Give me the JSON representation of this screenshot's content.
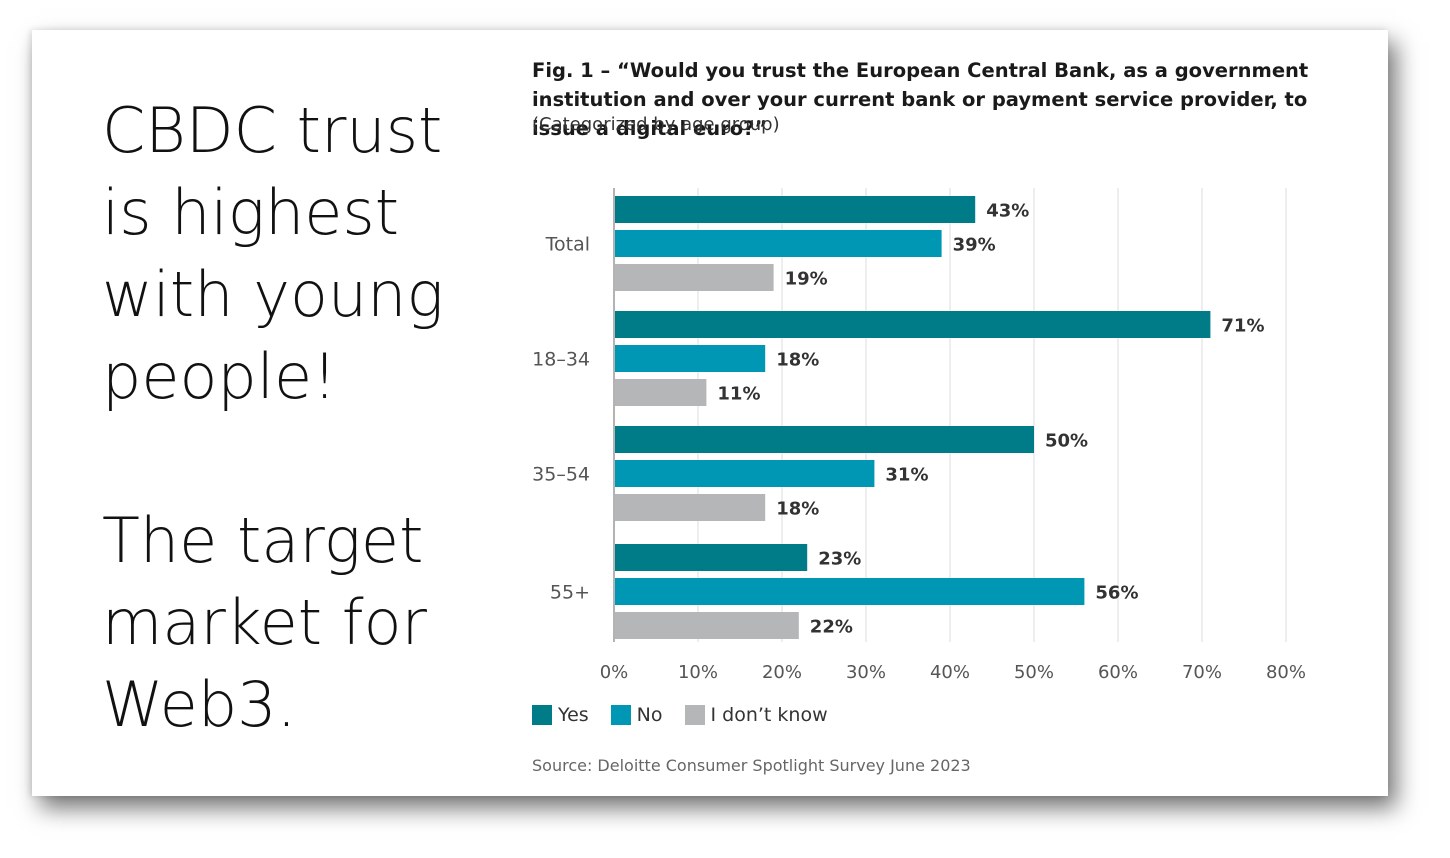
{
  "headline": {
    "lines": [
      "CBDC trust",
      "is highest",
      "with young",
      "people!",
      "",
      "The target",
      "market for",
      "Web3."
    ]
  },
  "figure": {
    "title": "Fig. 1 – “Would you trust the European Central Bank, as a government institution and over your current bank or payment service provider, to issue a digital euro?”",
    "subtitle": "(Categorized by age group)",
    "source": "Source: Deloitte Consumer Spotlight Survey June 2023"
  },
  "chart_data": {
    "type": "bar",
    "orientation": "horizontal",
    "categories": [
      "Total",
      "18–34",
      "35–54",
      "55+"
    ],
    "series": [
      {
        "name": "Yes",
        "color": "#007c89",
        "values": [
          43,
          71,
          50,
          23
        ]
      },
      {
        "name": "No",
        "color": "#0097b5",
        "values": [
          39,
          18,
          31,
          56
        ]
      },
      {
        "name": "I don’t know",
        "color": "#b5b6b8",
        "values": [
          19,
          11,
          18,
          22
        ]
      }
    ],
    "xlim": [
      0,
      80
    ],
    "xticks": [
      "0%",
      "10%",
      "20%",
      "30%",
      "40%",
      "50%",
      "60%",
      "70%",
      "80%"
    ],
    "value_suffix": "%",
    "grid": true,
    "legend_placement": "bottom-left"
  }
}
